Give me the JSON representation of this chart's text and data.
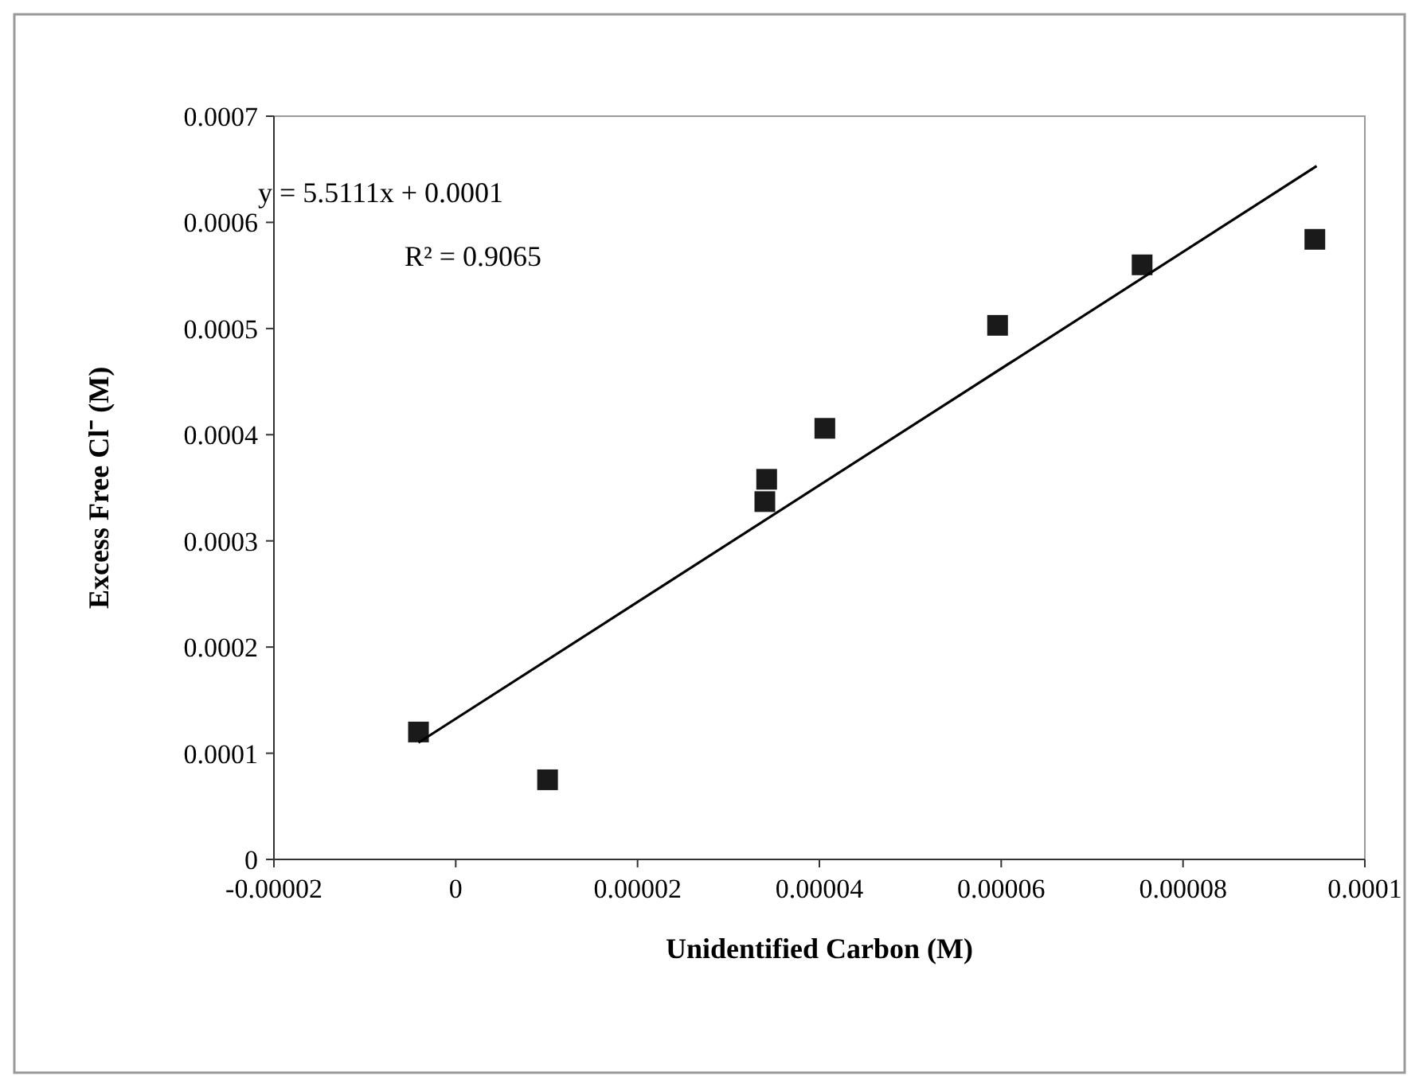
{
  "chart_data": {
    "type": "scatter",
    "xlabel": "Unidentified Carbon (M)",
    "ylabel": "Excess Free Cl⁻ (M)",
    "xlim": [
      -2e-05,
      0.0001
    ],
    "xticks": [
      {
        "value": -2e-05,
        "label": "-0.00002"
      },
      0,
      {
        "value": 2e-05,
        "label": "0.00002"
      },
      {
        "value": 4e-05,
        "label": "0.00004"
      },
      {
        "value": 6e-05,
        "label": "0.00006"
      },
      {
        "value": 8e-05,
        "label": "0.00008"
      },
      0.0001
    ],
    "ylim": [
      0,
      0.0007
    ],
    "yticks": [
      0,
      0.0001,
      0.0002,
      0.0003,
      0.0004,
      0.0005,
      0.0006,
      0.0007
    ],
    "grid": false,
    "series": [
      {
        "marker": "square",
        "color": "#1a1a1a",
        "x": [
          -4.1e-06,
          1.01e-05,
          3.42e-05,
          3.4e-05,
          4.06e-05,
          5.96e-05,
          7.55e-05,
          9.45e-05
        ],
        "values": [
          0.00012,
          7.5e-05,
          0.000358,
          0.000337,
          0.000406,
          0.000503,
          0.00056,
          0.000584
        ]
      },
      {
        "type": "line",
        "marker": "none",
        "line_style": "solid",
        "color": "#000000",
        "x": [
          -4.1e-06,
          9.47e-05
        ],
        "values": [
          0.00011,
          0.000653
        ]
      }
    ],
    "annotations": [
      "y = 5.5111x + 0.0001",
      "R² = 0.9065"
    ]
  }
}
